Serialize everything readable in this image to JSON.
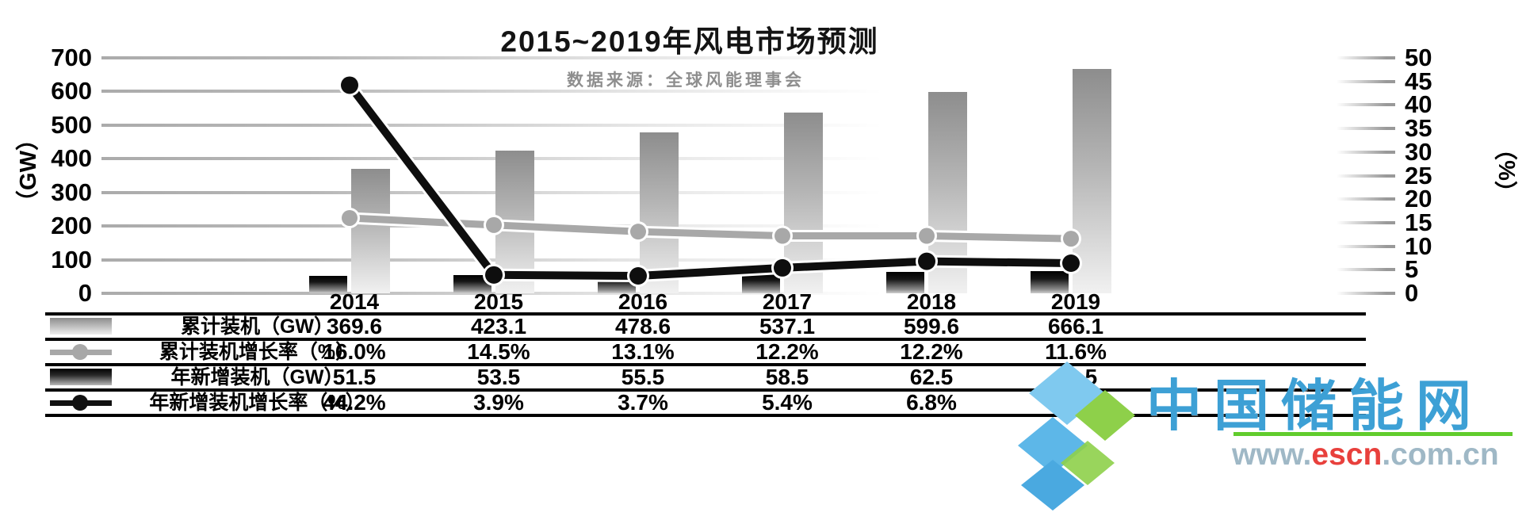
{
  "chart_data": {
    "type": "combo-bar-line",
    "title": "2015~2019年风电市场预测",
    "subtitle": "数据来源：全球风能理事会",
    "categories": [
      "2014",
      "2015",
      "2016",
      "2017",
      "2018",
      "2019"
    ],
    "series": [
      {
        "name": "累计装机（GW）",
        "type": "bar",
        "axis": "left",
        "values": [
          369.6,
          423.1,
          478.6,
          537.1,
          599.6,
          666.1
        ],
        "color": "#8d8d8d",
        "gradient_bottom": "#f1f1f1"
      },
      {
        "name": "累计装机增长率（%）",
        "type": "line",
        "axis": "right",
        "values": [
          16.0,
          14.5,
          13.1,
          12.2,
          12.2,
          11.6
        ],
        "color": "#a8a8a8"
      },
      {
        "name": "年新增装机（GW）",
        "type": "bar",
        "axis": "left",
        "values": [
          51.5,
          53.5,
          55.5,
          58.5,
          62.5,
          66.5
        ],
        "color": "#000000",
        "gradient_bottom": "#cfcfcf"
      },
      {
        "name": "年新增装机增长率（%）",
        "type": "line",
        "axis": "right",
        "values": [
          44.2,
          3.9,
          3.7,
          5.4,
          6.8,
          6.4
        ],
        "color": "#0e0e0e"
      }
    ],
    "axes": {
      "left": {
        "label": "（GW）",
        "min": 0,
        "max": 700,
        "step": 100,
        "ticks": [
          0,
          100,
          200,
          300,
          400,
          500,
          600,
          700
        ]
      },
      "right": {
        "label": "（%）",
        "min": 0,
        "max": 50,
        "step": 5,
        "ticks": [
          0,
          5,
          10,
          15,
          20,
          25,
          30,
          35,
          40,
          45,
          50
        ]
      }
    },
    "grid": "horizontal, fading toward right",
    "legend_position": "data-table-left"
  },
  "table": {
    "rows": [
      {
        "legend": "bar-gray",
        "label": "累计装机（GW）",
        "values": [
          "369.6",
          "423.1",
          "478.6",
          "537.1",
          "599.6",
          "666.1"
        ]
      },
      {
        "legend": "line-gray",
        "label": "累计装机增长率（%）",
        "values": [
          "16.0%",
          "14.5%",
          "13.1%",
          "12.2%",
          "12.2%",
          "11.6%"
        ]
      },
      {
        "legend": "bar-black",
        "label": "年新增装机（GW）",
        "values": [
          "51.5",
          "53.5",
          "55.5",
          "58.5",
          "62.5",
          "66.5"
        ]
      },
      {
        "legend": "line-black",
        "label": "年新增装机增长率（%）",
        "values": [
          "44.2%",
          "3.9%",
          "3.7%",
          "5.4%",
          "6.8%",
          "6.4%"
        ]
      }
    ]
  },
  "watermark": {
    "site_name": "中国储能网",
    "url_prefix": "www.",
    "url_domain": "escn",
    "url_suffix": ".com.cn",
    "brand_blue": "#3da0d5",
    "brand_green": "#61cc2d",
    "brand_red": "#e8403c"
  }
}
